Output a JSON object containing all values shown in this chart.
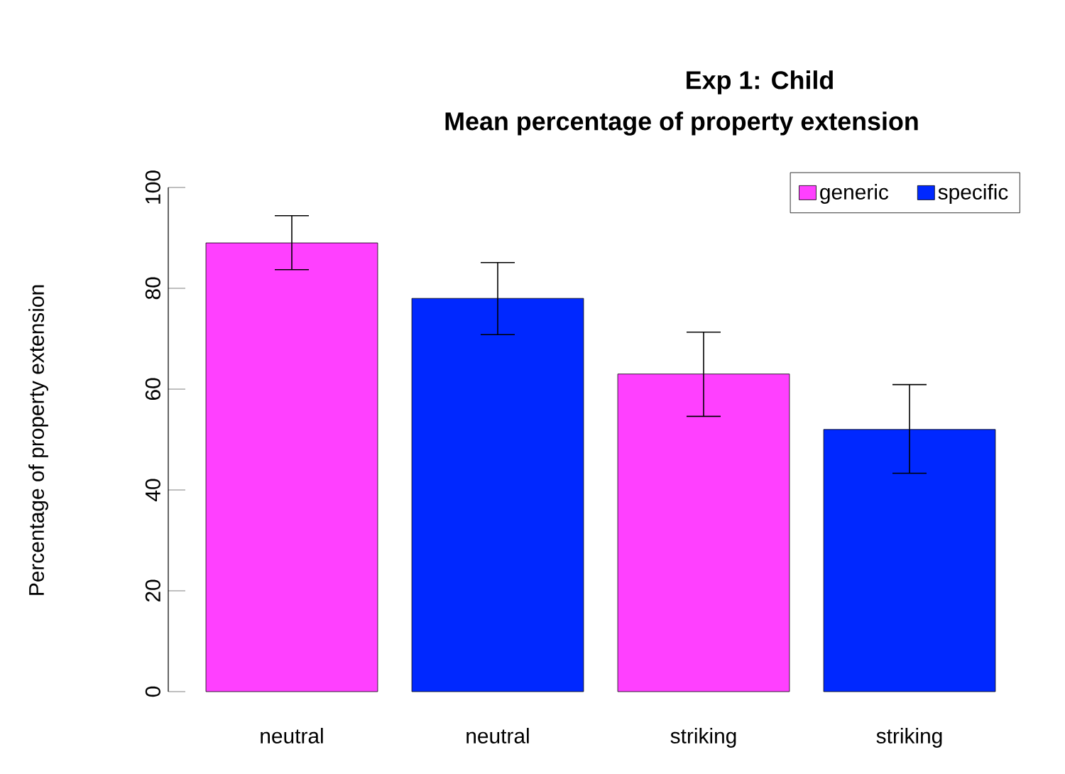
{
  "chart_data": {
    "type": "bar",
    "title": "Exp 1: Child",
    "subtitle": "Mean percentage of property extension",
    "ylabel": "Percentage of property extension",
    "categories": [
      "neutral",
      "neutral",
      "striking",
      "striking"
    ],
    "series": [
      {
        "name": "generic",
        "color": "#ff40ff",
        "values": [
          89,
          null,
          63,
          null
        ],
        "errors": [
          [
            83.7,
            94.4
          ],
          null,
          [
            54.6,
            71.3
          ],
          null
        ]
      },
      {
        "name": "specific",
        "color": "#0028ff",
        "values": [
          null,
          78,
          null,
          52
        ],
        "errors": [
          null,
          [
            70.8,
            85.1
          ],
          null,
          [
            43.3,
            60.9
          ]
        ]
      }
    ],
    "ylim": [
      0,
      100
    ],
    "yticks": [
      0,
      20,
      40,
      60,
      80,
      100
    ],
    "legend": "top right"
  }
}
